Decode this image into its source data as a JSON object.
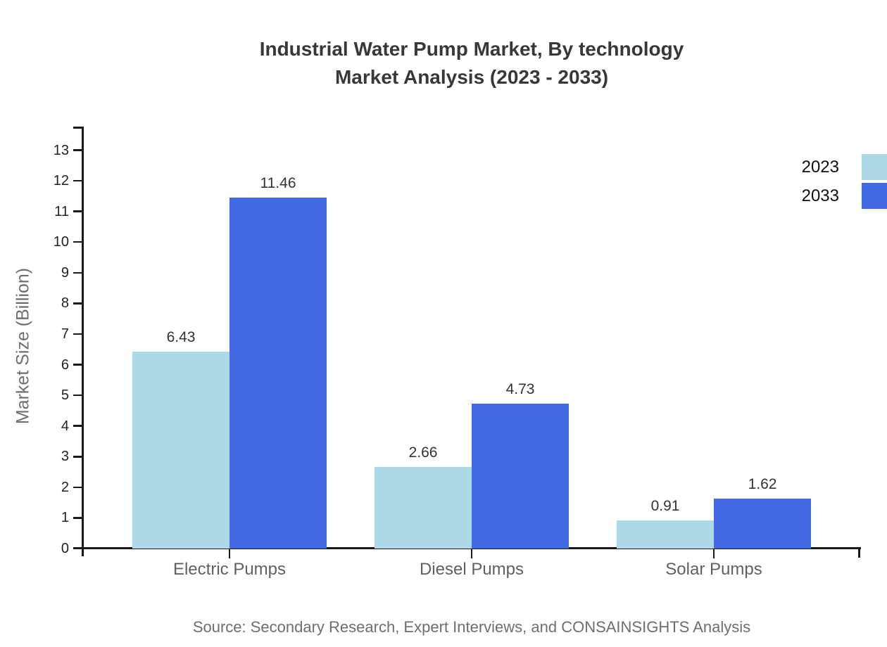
{
  "title": {
    "line1": "Industrial Water Pump Market, By technology",
    "line2": "Market Analysis (2023 - 2033)"
  },
  "source_text": "Source: Secondary Research, Expert Interviews, and CONSAINSIGHTS Analysis",
  "chart_data": {
    "type": "bar",
    "title": "Industrial Water Pump Market, By technology Market Analysis (2023 - 2033)",
    "categories": [
      "Electric Pumps",
      "Diesel Pumps",
      "Solar Pumps"
    ],
    "series": [
      {
        "name": "2023",
        "color": "#ADD8E6",
        "values": [
          6.43,
          2.66,
          0.91
        ]
      },
      {
        "name": "2033",
        "color": "#4169E1",
        "values": [
          11.46,
          4.73,
          1.62
        ]
      }
    ],
    "xlabel": "",
    "ylabel": "Market Size (Billion)",
    "ylim": [
      0,
      13
    ],
    "y_ticks": [
      0,
      1,
      2,
      3,
      4,
      5,
      6,
      7,
      8,
      9,
      10,
      11,
      12,
      13
    ],
    "grid": false,
    "legend_position": "top-right",
    "value_labels": true,
    "value_label_format": "2-decimals"
  },
  "colors": {
    "series_2023": "#ADD8E6",
    "series_2033": "#4169E1",
    "axis": "#1a1a1a",
    "title_text": "#383838",
    "muted_text": "#6e6e6e",
    "background": "#ffffff"
  }
}
